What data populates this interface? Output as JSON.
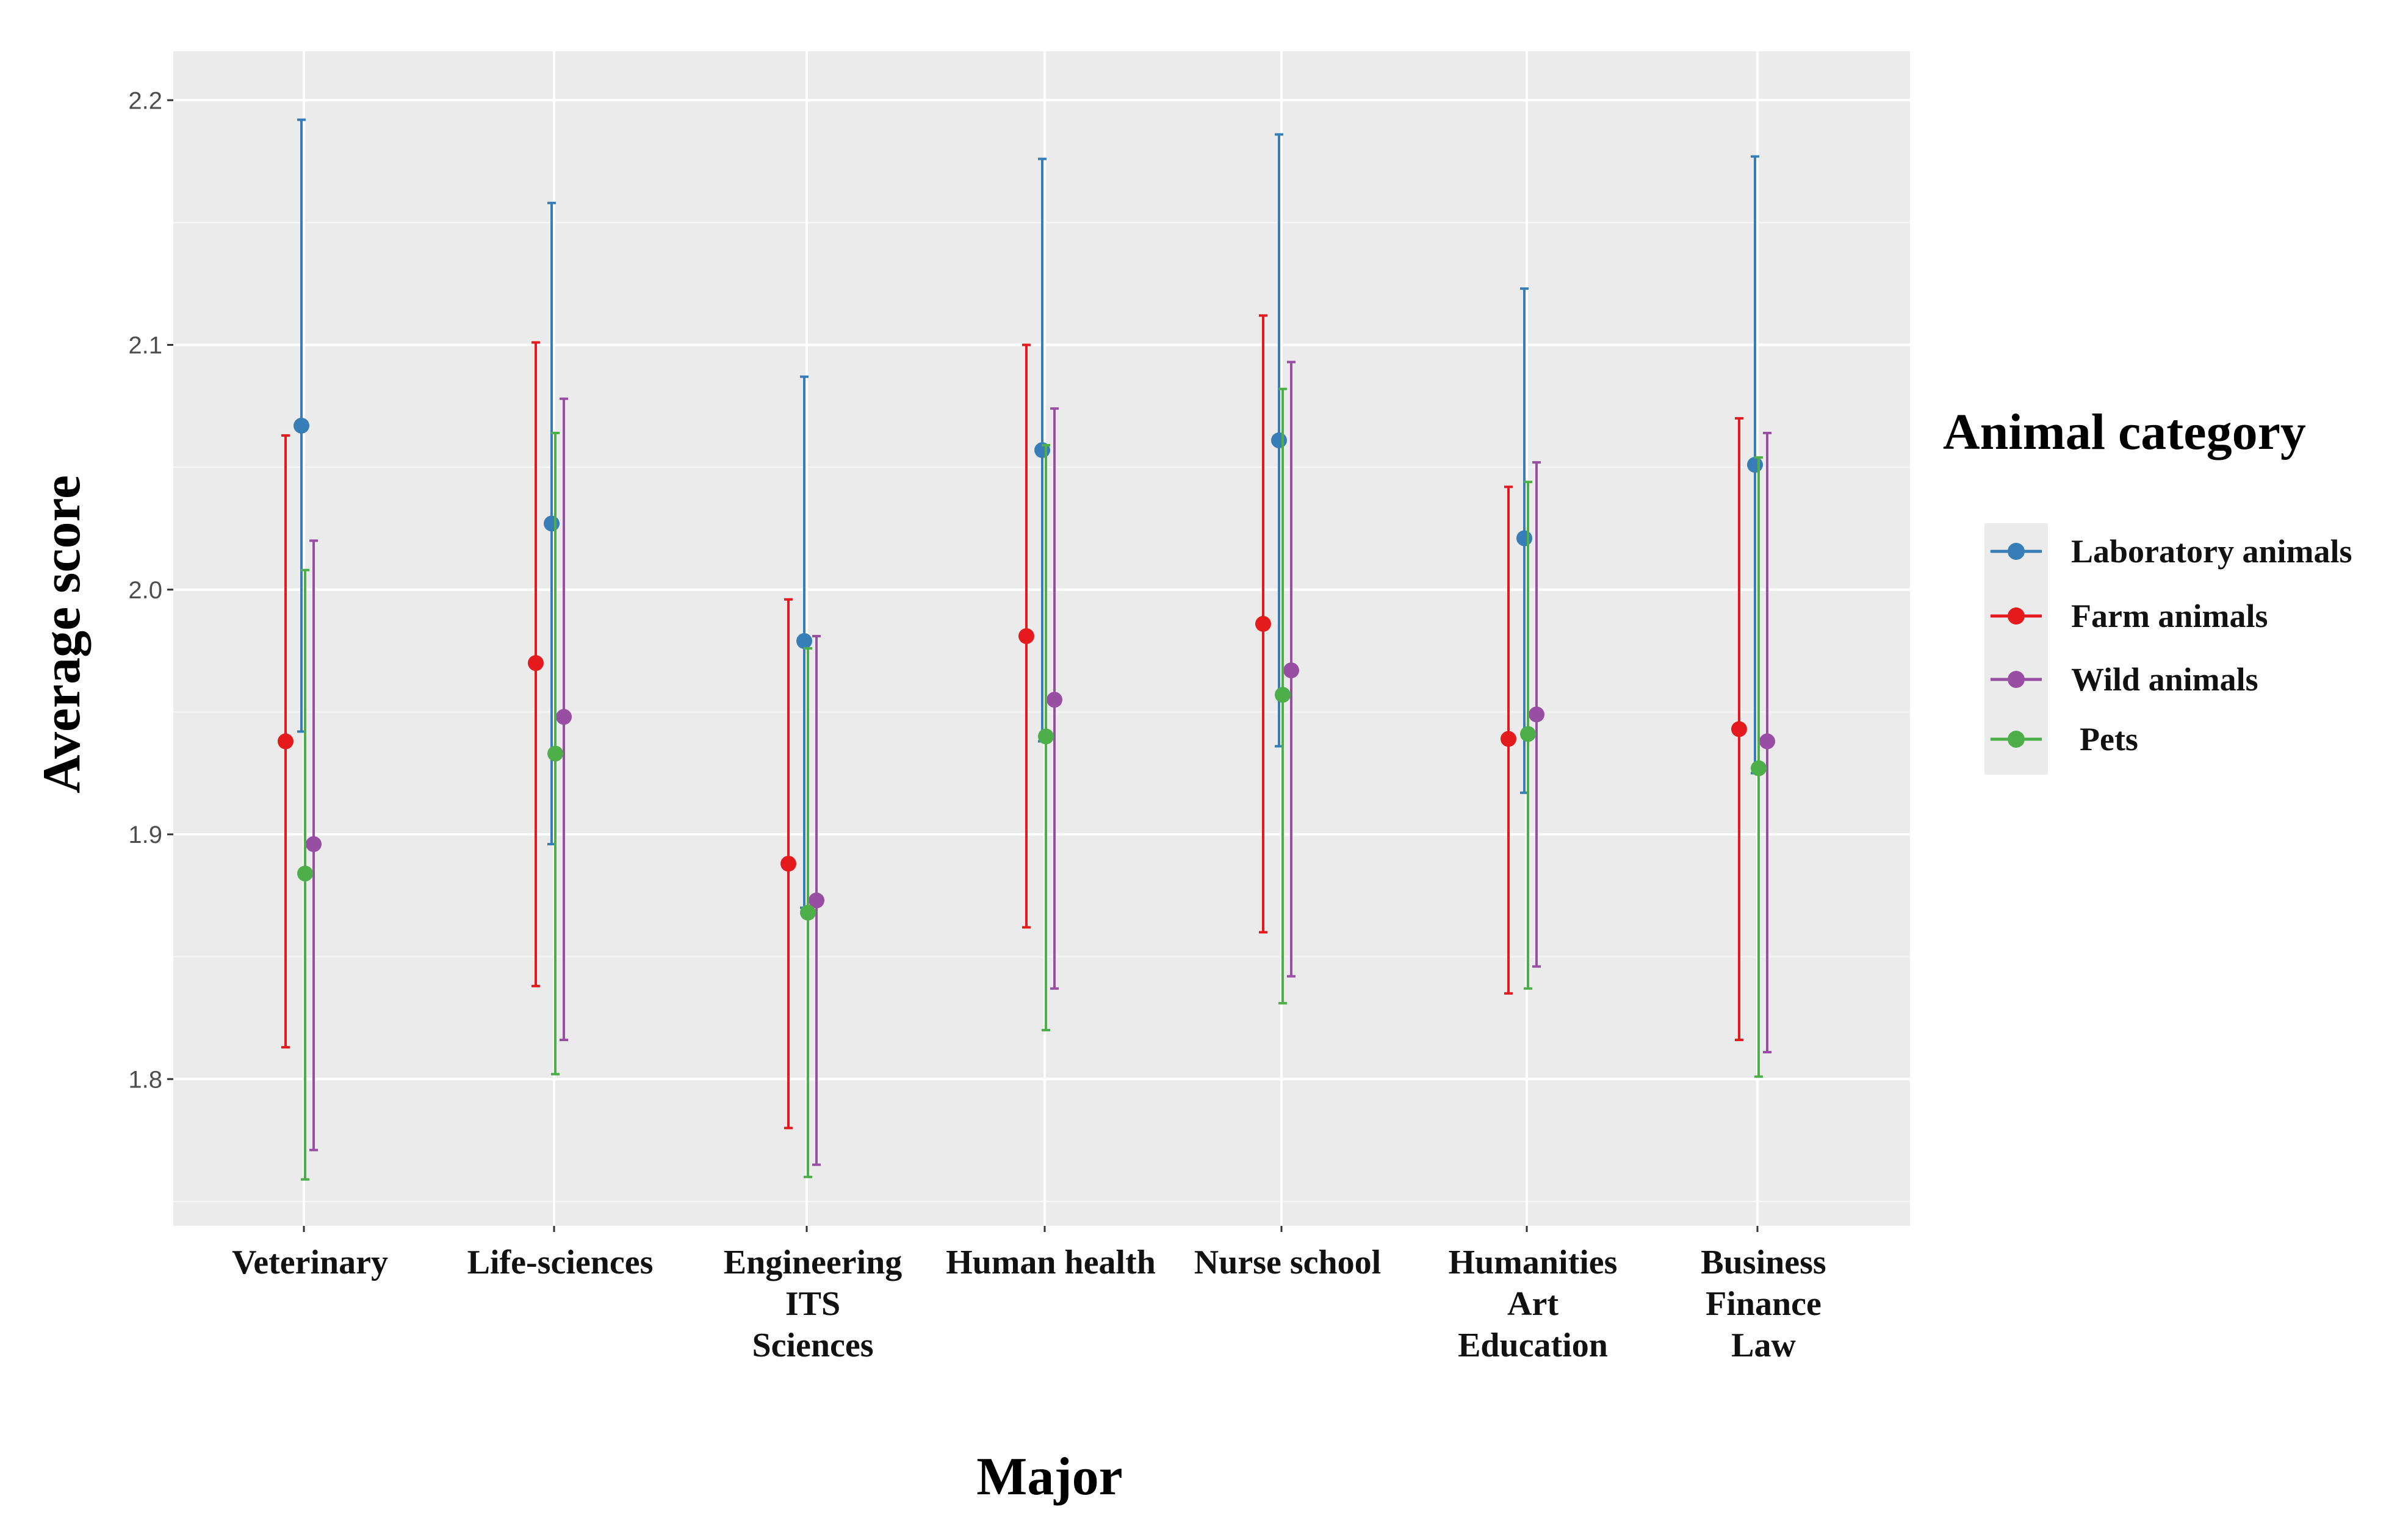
{
  "chart_data": {
    "type": "scatter",
    "subtype": "point-range (mean with error bars)",
    "xlabel": "Major",
    "ylabel": "Average score",
    "ylim": [
      1.74,
      2.22
    ],
    "yticks": [
      "1.8",
      "1.9",
      "2.0",
      "2.1",
      "2.2"
    ],
    "ytick_values": [
      1.8,
      1.9,
      2.0,
      2.1,
      2.2
    ],
    "grid": true,
    "legend": {
      "title": "Animal category",
      "position": "right"
    },
    "categories": [
      [
        "Veterinary"
      ],
      [
        "Life-sciences"
      ],
      [
        "Engineering",
        "ITS",
        "Sciences"
      ],
      [
        "Human health"
      ],
      [
        "Nurse school"
      ],
      [
        "Humanities",
        "Art",
        "Education"
      ],
      [
        "Business",
        "Finance",
        "Law"
      ]
    ],
    "series": [
      {
        "name": "Laboratory animals",
        "color": "#377eb8",
        "values": [
          2.067,
          2.027,
          1.979,
          2.057,
          2.061,
          2.021,
          2.051
        ],
        "lower": [
          1.942,
          1.896,
          1.87,
          1.938,
          1.936,
          1.917,
          1.925
        ],
        "upper": [
          2.192,
          2.158,
          2.087,
          2.176,
          2.186,
          2.123,
          2.177
        ]
      },
      {
        "name": "Farm animals",
        "color": "#e41a1c",
        "values": [
          1.938,
          1.97,
          1.888,
          1.981,
          1.986,
          1.939,
          1.943
        ],
        "lower": [
          1.813,
          1.838,
          1.78,
          1.862,
          1.86,
          1.835,
          1.816
        ],
        "upper": [
          2.063,
          2.101,
          1.996,
          2.1,
          2.112,
          2.042,
          2.07
        ]
      },
      {
        "name": "Wild animals",
        "color": "#984ea3",
        "values": [
          1.896,
          1.948,
          1.873,
          1.955,
          1.967,
          1.949,
          1.938
        ],
        "lower": [
          1.771,
          1.816,
          1.765,
          1.837,
          1.842,
          1.846,
          1.811
        ],
        "upper": [
          2.02,
          2.078,
          1.981,
          2.074,
          2.093,
          2.052,
          2.064
        ]
      },
      {
        "name": "Pets",
        "color": "#4daf4a",
        "values": [
          1.884,
          1.933,
          1.868,
          1.94,
          1.957,
          1.941,
          1.927
        ],
        "lower": [
          1.759,
          1.802,
          1.76,
          1.82,
          1.831,
          1.837,
          1.801
        ],
        "upper": [
          2.008,
          2.064,
          1.976,
          2.059,
          2.082,
          2.044,
          2.054
        ]
      }
    ]
  }
}
